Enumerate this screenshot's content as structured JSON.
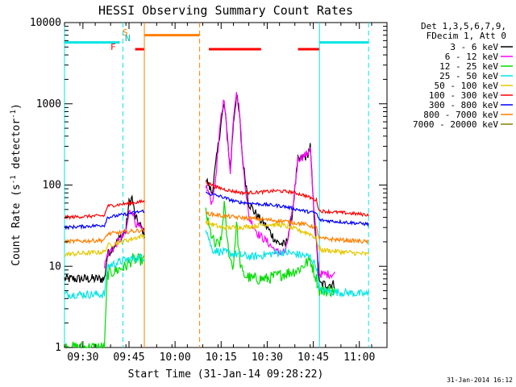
{
  "chart_data": {
    "type": "line",
    "title": "HESSI Observing Summary Count Rates",
    "xlabel": "Start Time (31-Jan-14 09:28:22)",
    "ylabel": "Count Rate (s",
    "ylabel_sup": "-1",
    "ylabel_end": " detector",
    "ylabel_sup2": "-1",
    "ylabel_close": ")",
    "yscale": "log",
    "xlim": [
      "09:24",
      "11:09"
    ],
    "ylim": [
      1,
      10000
    ],
    "x_ticks": [
      "09:30",
      "09:45",
      "10:00",
      "10:15",
      "10:30",
      "10:45",
      "11:00"
    ],
    "y_ticks": [
      "1",
      "10",
      "100",
      "1000",
      "10000"
    ],
    "legend_header": [
      "Det 1,3,5,6,7,9,",
      "FDecim 1, Att 0"
    ],
    "legend_position": "right",
    "footer_date": "31-Jan-2014 16:12",
    "flag_labels": {
      "S": "S",
      "N": "N",
      "F": "F"
    },
    "flag_bars": [
      {
        "name": "SAA",
        "color": "#00e5e5",
        "y": 5700,
        "segments": [
          [
            "09:24",
            "09:42"
          ],
          [
            "10:47",
            "11:03"
          ]
        ]
      },
      {
        "name": "Eclipse",
        "color": "#ff7f00",
        "y": 7000,
        "segments": [
          [
            "09:50",
            "10:08"
          ]
        ]
      },
      {
        "name": "Flare",
        "color": "#ff0000",
        "y": 4700,
        "segments": [
          [
            "09:47",
            "09:50"
          ],
          [
            "10:11",
            "10:28"
          ],
          [
            "10:40",
            "10:47"
          ]
        ]
      }
    ],
    "vlines": [
      {
        "x": "09:24",
        "color": "#00e5e5",
        "style": "solid"
      },
      {
        "x": "09:43",
        "color": "#00e5e5",
        "style": "dashed"
      },
      {
        "x": "09:50",
        "color": "#ff7f00",
        "style": "solid"
      },
      {
        "x": "10:08",
        "color": "#ff7f00",
        "style": "dashed"
      },
      {
        "x": "10:47",
        "color": "#00e5e5",
        "style": "solid"
      },
      {
        "x": "11:03",
        "color": "#00e5e5",
        "style": "dashed"
      }
    ],
    "data_gap": [
      "09:50",
      "10:10"
    ],
    "series": [
      {
        "name": "3 - 6 keV",
        "color": "#000000",
        "noise": 0.12,
        "points": [
          [
            "09:24",
            7
          ],
          [
            "09:37",
            7
          ],
          [
            "09:38",
            14
          ],
          [
            "09:44",
            28
          ],
          [
            "09:45",
            60
          ],
          [
            "09:46",
            70
          ],
          [
            "09:47",
            40
          ],
          [
            "09:49",
            30
          ],
          [
            "09:50",
            25
          ],
          [
            "10:10",
            120
          ],
          [
            "10:12",
            80
          ],
          [
            "10:13",
            150
          ],
          [
            "10:15",
            600
          ],
          [
            "10:16",
            1000
          ],
          [
            "10:17",
            400
          ],
          [
            "10:18",
            150
          ],
          [
            "10:19",
            600
          ],
          [
            "10:20",
            1300
          ],
          [
            "10:21",
            700
          ],
          [
            "10:22",
            200
          ],
          [
            "10:24",
            60
          ],
          [
            "10:27",
            40
          ],
          [
            "10:30",
            30
          ],
          [
            "10:33",
            20
          ],
          [
            "10:36",
            18
          ],
          [
            "10:38",
            40
          ],
          [
            "10:40",
            200
          ],
          [
            "10:42",
            220
          ],
          [
            "10:43",
            230
          ],
          [
            "10:44",
            300
          ],
          [
            "10:45",
            60
          ],
          [
            "10:47",
            6
          ],
          [
            "10:52",
            6
          ]
        ]
      },
      {
        "name": "6 - 12 keV",
        "color": "#ff00ff",
        "noise": 0.1,
        "points": [
          [
            "09:37",
            10
          ],
          [
            "09:38",
            14
          ],
          [
            "09:44",
            26
          ],
          [
            "09:45",
            45
          ],
          [
            "09:46",
            50
          ],
          [
            "09:47",
            35
          ],
          [
            "09:50",
            25
          ],
          [
            "10:10",
            100
          ],
          [
            "10:12",
            60
          ],
          [
            "10:13",
            100
          ],
          [
            "10:15",
            700
          ],
          [
            "10:16",
            1200
          ],
          [
            "10:17",
            400
          ],
          [
            "10:18",
            150
          ],
          [
            "10:19",
            700
          ],
          [
            "10:20",
            1500
          ],
          [
            "10:21",
            800
          ],
          [
            "10:22",
            200
          ],
          [
            "10:24",
            40
          ],
          [
            "10:27",
            25
          ],
          [
            "10:30",
            20
          ],
          [
            "10:33",
            15
          ],
          [
            "10:36",
            15
          ],
          [
            "10:38",
            40
          ],
          [
            "10:40",
            210
          ],
          [
            "10:42",
            230
          ],
          [
            "10:43",
            240
          ],
          [
            "10:44",
            300
          ],
          [
            "10:45",
            60
          ],
          [
            "10:47",
            8
          ],
          [
            "10:52",
            8
          ]
        ]
      },
      {
        "name": "12 - 25 keV",
        "color": "#00dd00",
        "noise": 0.15,
        "points": [
          [
            "09:24",
            1
          ],
          [
            "09:37",
            1
          ],
          [
            "09:38",
            8
          ],
          [
            "09:44",
            10
          ],
          [
            "09:46",
            12
          ],
          [
            "09:50",
            12
          ],
          [
            "10:10",
            50
          ],
          [
            "10:11",
            30
          ],
          [
            "10:13",
            18
          ],
          [
            "10:15",
            20
          ],
          [
            "10:16",
            60
          ],
          [
            "10:17",
            20
          ],
          [
            "10:18",
            12
          ],
          [
            "10:19",
            10
          ],
          [
            "10:20",
            35
          ],
          [
            "10:21",
            12
          ],
          [
            "10:22",
            8
          ],
          [
            "10:25",
            7
          ],
          [
            "10:30",
            7
          ],
          [
            "10:35",
            8
          ],
          [
            "10:40",
            9
          ],
          [
            "10:44",
            12
          ],
          [
            "10:46",
            7
          ],
          [
            "10:47",
            5
          ],
          [
            "10:52",
            5
          ]
        ]
      },
      {
        "name": "25 - 50 keV",
        "color": "#00e5e5",
        "noise": 0.1,
        "points": [
          [
            "09:24",
            4.5
          ],
          [
            "09:37",
            4.5
          ],
          [
            "09:38",
            10
          ],
          [
            "09:44",
            12
          ],
          [
            "09:50",
            13
          ],
          [
            "10:10",
            30
          ],
          [
            "10:12",
            16
          ],
          [
            "10:15",
            15
          ],
          [
            "10:20",
            14
          ],
          [
            "10:25",
            13
          ],
          [
            "10:30",
            14
          ],
          [
            "10:35",
            15
          ],
          [
            "10:40",
            14
          ],
          [
            "10:44",
            13
          ],
          [
            "10:46",
            10
          ],
          [
            "10:47",
            5
          ],
          [
            "11:03",
            4.5
          ]
        ]
      },
      {
        "name": "50 - 100 keV",
        "color": "#e5c800",
        "noise": 0.06,
        "points": [
          [
            "09:24",
            14
          ],
          [
            "09:37",
            15
          ],
          [
            "09:38",
            18
          ],
          [
            "09:50",
            24
          ],
          [
            "10:10",
            35
          ],
          [
            "10:15",
            30
          ],
          [
            "10:20",
            30
          ],
          [
            "10:25",
            31
          ],
          [
            "10:30",
            33
          ],
          [
            "10:35",
            32
          ],
          [
            "10:40",
            28
          ],
          [
            "10:44",
            25
          ],
          [
            "10:46",
            22
          ],
          [
            "10:47",
            16
          ],
          [
            "11:03",
            14
          ]
        ]
      },
      {
        "name": "100 - 300 keV",
        "color": "#ff0000",
        "noise": 0.04,
        "points": [
          [
            "09:24",
            40
          ],
          [
            "09:37",
            42
          ],
          [
            "09:38",
            55
          ],
          [
            "09:50",
            63
          ],
          [
            "10:10",
            110
          ],
          [
            "10:13",
            95
          ],
          [
            "10:18",
            85
          ],
          [
            "10:22",
            80
          ],
          [
            "10:28",
            82
          ],
          [
            "10:33",
            85
          ],
          [
            "10:38",
            82
          ],
          [
            "10:42",
            75
          ],
          [
            "10:46",
            65
          ],
          [
            "10:47",
            48
          ],
          [
            "11:03",
            43
          ]
        ]
      },
      {
        "name": "300 - 800 keV",
        "color": "#0000ff",
        "noise": 0.04,
        "points": [
          [
            "09:24",
            30
          ],
          [
            "09:37",
            32
          ],
          [
            "09:38",
            40
          ],
          [
            "09:50",
            48
          ],
          [
            "10:10",
            80
          ],
          [
            "10:15",
            72
          ],
          [
            "10:20",
            62
          ],
          [
            "10:28",
            58
          ],
          [
            "10:35",
            55
          ],
          [
            "10:42",
            48
          ],
          [
            "10:46",
            45
          ],
          [
            "10:47",
            37
          ],
          [
            "11:03",
            33
          ]
        ]
      },
      {
        "name": "800 - 7000 keV",
        "color": "#ff7f00",
        "noise": 0.05,
        "points": [
          [
            "09:24",
            20
          ],
          [
            "09:37",
            21
          ],
          [
            "09:38",
            25
          ],
          [
            "09:50",
            28
          ],
          [
            "10:10",
            45
          ],
          [
            "10:15",
            42
          ],
          [
            "10:20",
            40
          ],
          [
            "10:28",
            38
          ],
          [
            "10:35",
            36
          ],
          [
            "10:42",
            33
          ],
          [
            "10:46",
            30
          ],
          [
            "10:47",
            22
          ],
          [
            "11:03",
            20
          ]
        ]
      },
      {
        "name": "7000 - 20000 keV",
        "color": "#808000",
        "noise": 0.0,
        "points": []
      }
    ]
  }
}
